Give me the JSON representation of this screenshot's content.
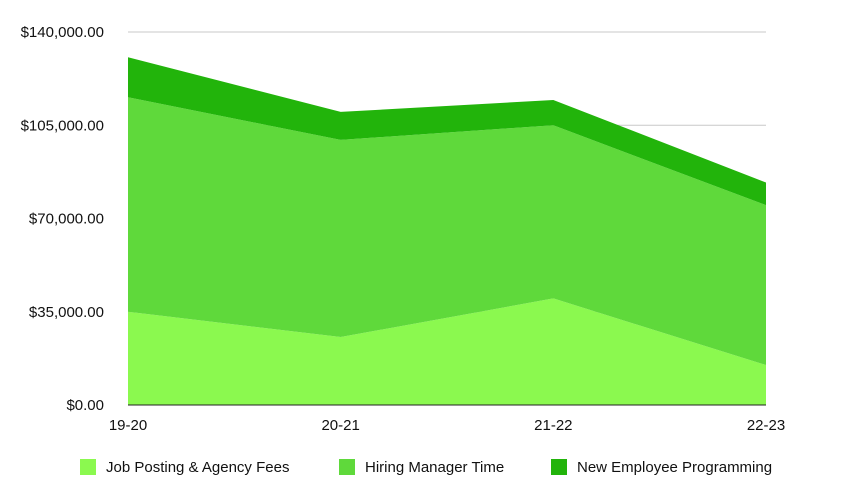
{
  "chart_data": {
    "type": "area",
    "stacked": true,
    "categories": [
      "19-20",
      "20-21",
      "21-22",
      "22-23"
    ],
    "series": [
      {
        "name": "Job Posting & Agency Fees",
        "values": [
          35000,
          25500,
          40000,
          15000
        ],
        "color": "#8bf94f"
      },
      {
        "name": "Hiring Manager Time",
        "values": [
          80500,
          74000,
          65000,
          60000
        ],
        "color": "#5fd93b"
      },
      {
        "name": "New Employee Programming",
        "values": [
          15000,
          10500,
          9500,
          8500
        ],
        "color": "#22b40b"
      }
    ],
    "y_ticks": [
      "$0.00",
      "$35,000.00",
      "$70,000.00",
      "$105,000.00",
      "$140,000.00"
    ],
    "y_tick_values": [
      0,
      35000,
      70000,
      105000,
      140000
    ],
    "ylim": [
      0,
      140000
    ],
    "grid": "horizontal",
    "legend_position": "bottom"
  }
}
